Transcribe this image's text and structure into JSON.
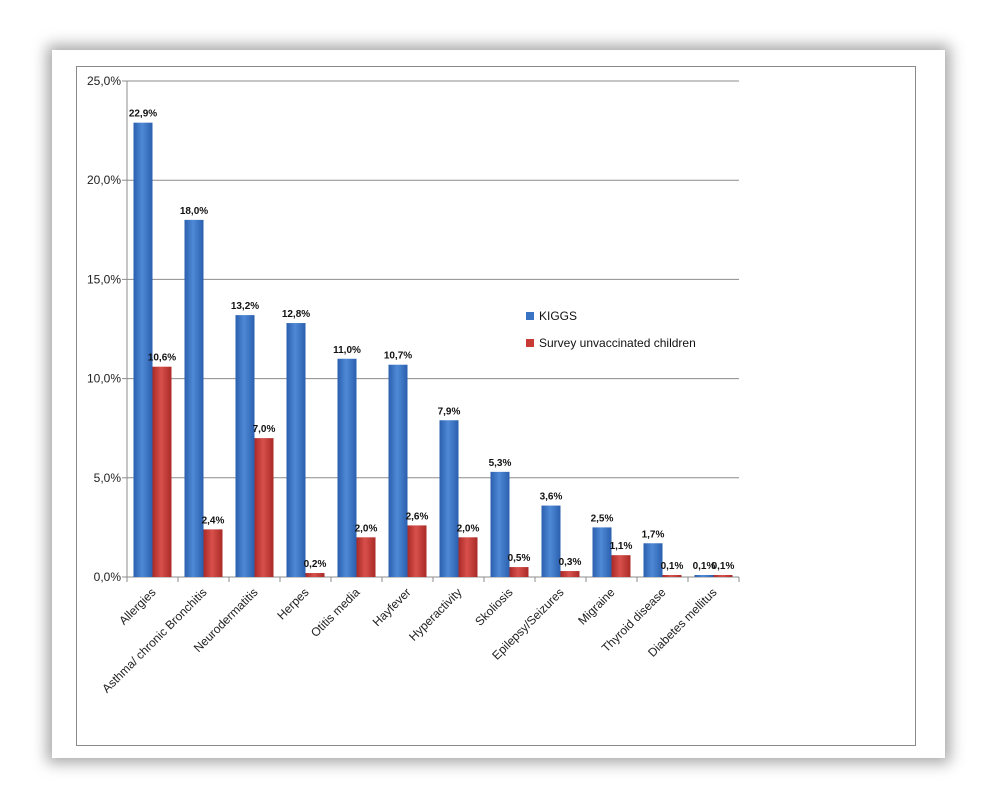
{
  "chart_data": {
    "type": "bar",
    "categories": [
      "Allergies",
      "Asthma/ chronic Bronchitis",
      "Neurodermatitis",
      "Herpes",
      "Otitis media",
      "Hayfever",
      "Hyperactivity",
      "Skoliosis",
      "Epilepsy/Seizures",
      "Migraine",
      "Thyroid disease",
      "Diabetes mellitus"
    ],
    "series": [
      {
        "name": "KIGGS",
        "color": "#3a73c4",
        "values": [
          22.9,
          18.0,
          13.2,
          12.8,
          11.0,
          10.7,
          7.9,
          5.3,
          3.6,
          2.5,
          1.7,
          0.1
        ],
        "labels": [
          "22,9%",
          "18,0%",
          "13,2%",
          "12,8%",
          "11,0%",
          "10,7%",
          "7,9%",
          "5,3%",
          "3,6%",
          "2,5%",
          "1,7%",
          "0,1%"
        ]
      },
      {
        "name": "Survey unvaccinated children",
        "color": "#c83a36",
        "values": [
          10.6,
          2.4,
          7.0,
          0.2,
          2.0,
          2.6,
          2.0,
          0.5,
          0.3,
          1.1,
          0.1,
          0.1
        ],
        "labels": [
          "10,6%",
          "2,4%",
          "7,0%",
          "0,2%",
          "2,0%",
          "2,6%",
          "2,0%",
          "0,5%",
          "0,3%",
          "1,1%",
          "0,1%",
          "0,1%"
        ]
      }
    ],
    "y_ticks": [
      0,
      5,
      10,
      15,
      20,
      25
    ],
    "y_tick_labels": [
      "0,0%",
      "5,0%",
      "10,0%",
      "15,0%",
      "20,0%",
      "25,0%"
    ],
    "ylim": [
      0,
      25
    ],
    "grid": true,
    "legend_position": "right"
  }
}
